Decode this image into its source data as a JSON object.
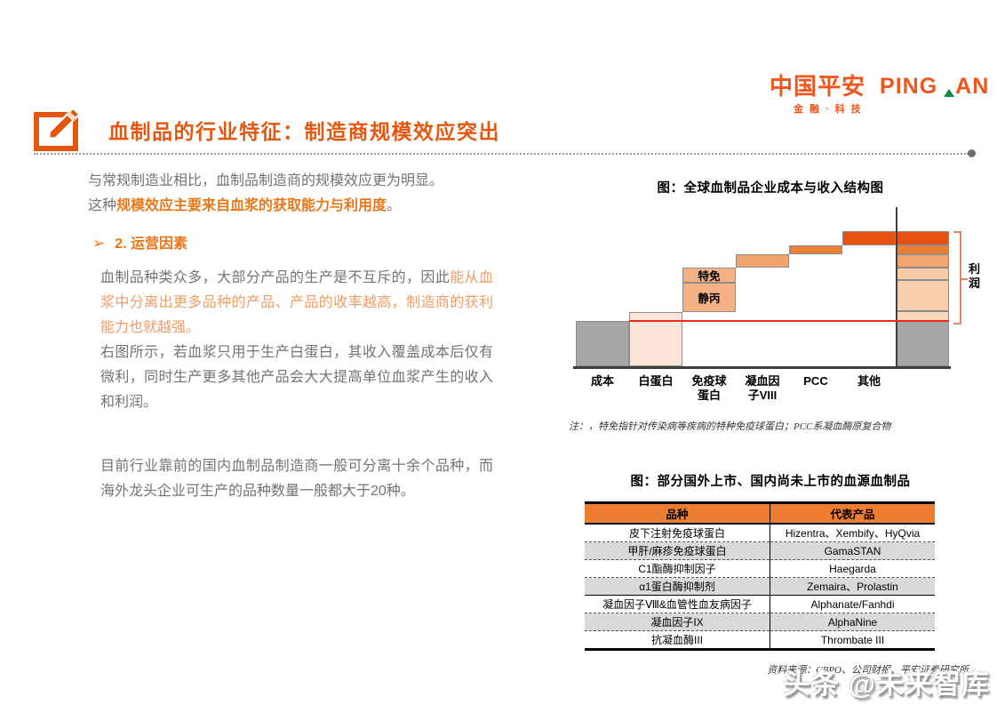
{
  "header": {
    "logo_cn": "中国平安",
    "logo_en_1": "PING",
    "logo_en_2": "AN",
    "logo_tagline": "金融·科技",
    "title": "血制品的行业特征：制造商规模效应突出"
  },
  "left": {
    "p1": "与常规制造业相比，血制品制造商的规模效应更为明显。",
    "p2_prefix": "这种",
    "p2_orange": "规模效应主要来自血浆的获取能力与利用度",
    "p2_suffix": "。",
    "bullet_arrow": "➢",
    "bullet_text": "2. 运营因素",
    "p3_gray": "血制品种类众多，大部分产品的生产是不互斥的，因此",
    "p3_orange": "能从血浆中分离出更多品种的产品、产品的收率越高，制造商的获利能力也就越强。",
    "p4": "右图所示，若血浆只用于生产白蛋白，其收入覆盖成本后仅有微利，同时生产更多其他产品会大大提高单位血浆产生的收入和利润。",
    "p5": "目前行业靠前的国内血制品制造商一般可分离十余个品种，而海外龙头企业可生产的品种数量一般都大于20种。"
  },
  "chart_data": {
    "type": "bar",
    "subtype": "waterfall-with-total-stack",
    "title": "图：全球血制品企业成本与收入结构图",
    "note": "注：，特免指针对传染病等疾病的特种免疫球蛋白；PCC系凝血酶原复合物",
    "value_units": "schematic relative height (no numeric axis shown)",
    "bars": [
      {
        "label": "成本",
        "segments": [
          {
            "name": "成本",
            "from": 0,
            "to": 51,
            "color": "#A8A7A7"
          }
        ]
      },
      {
        "label": "白蛋白",
        "segments": [
          {
            "name": "白蛋白",
            "from": 0,
            "to": 61,
            "color": "#FBE5D6"
          }
        ]
      },
      {
        "label": "免疫球\n蛋白",
        "segments": [
          {
            "name": "静丙",
            "from": 61,
            "to": 94,
            "color": "#F4B183",
            "show_name": true
          },
          {
            "name": "特免",
            "from": 94,
            "to": 111,
            "color": "#F4B183",
            "show_name": true
          }
        ]
      },
      {
        "label": "凝血因\n子VIII",
        "segments": [
          {
            "name": "凝血因子VIII",
            "from": 111,
            "to": 126,
            "color": "#F1A46F"
          }
        ]
      },
      {
        "label": "PCC",
        "segments": [
          {
            "name": "PCC",
            "from": 126,
            "to": 136,
            "color": "#EC8038"
          }
        ]
      },
      {
        "label": "其他",
        "segments": [
          {
            "name": "其他",
            "from": 136,
            "to": 152,
            "color": "#E8500F"
          }
        ]
      },
      {
        "label": "",
        "segments": [
          {
            "name": "成本",
            "from": 0,
            "to": 51,
            "color": "#A8A7A7"
          },
          {
            "name": "白蛋白",
            "from": 51,
            "to": 62,
            "color": "#F9D7B8"
          },
          {
            "name": "静丙",
            "from": 62,
            "to": 97,
            "color": "#F8CEAC"
          },
          {
            "name": "特免",
            "from": 97,
            "to": 111,
            "color": "#F7CBA6"
          },
          {
            "name": "凝血因子VIII",
            "from": 111,
            "to": 126,
            "color": "#F2A570"
          },
          {
            "name": "PCC",
            "from": 126,
            "to": 136,
            "color": "#ED7D31"
          },
          {
            "name": "其他",
            "from": 136,
            "to": 152,
            "color": "#E8500F"
          }
        ]
      }
    ],
    "cost_reference_line": {
      "value": 51,
      "color": "#F5281B"
    },
    "total_divider_line": {
      "before_bar_index": 6,
      "color": "#3F3F3F"
    },
    "profit_bracket": {
      "from": 51,
      "to": 152,
      "label": "利\n润",
      "color": "#E08565"
    }
  },
  "table": {
    "title": "图：部分国外上市、国内尚未上市的血源血制品",
    "headers": [
      "品种",
      "代表产品"
    ],
    "rows": [
      [
        "皮下注射免疫球蛋白",
        "Hizentra、Xembify、HyQvia"
      ],
      [
        "甲肝/麻疹免疫球蛋白",
        "GamaSTAN"
      ],
      [
        "C1酯酶抑制因子",
        "Haegarda"
      ],
      [
        "α1蛋白酶抑制剂",
        "Zemaira、Prolastin"
      ],
      [
        "凝血因子Ⅷ&血管性血友病因子",
        "Alphanate/Fanhdi"
      ],
      [
        "凝血因子IX",
        "AlphaNine"
      ],
      [
        "抗凝血酶III",
        "Thrombate III"
      ]
    ],
    "header_bg": "#ED7D31",
    "alt_row_bg": "#D9D9D9"
  },
  "source": "资料来源：CBPO、公司财报、平安证券研究所",
  "watermark": "头条 @未来智库",
  "colors": {
    "title_orange": "#E4570F",
    "logo_orange": "#F1551E",
    "logo_green": "#0B8C43",
    "body_gray": "#737373",
    "highlight_orange": "#E87719",
    "highlight_orange_light": "#EE9C66",
    "cost_line_red": "#F5281B"
  }
}
